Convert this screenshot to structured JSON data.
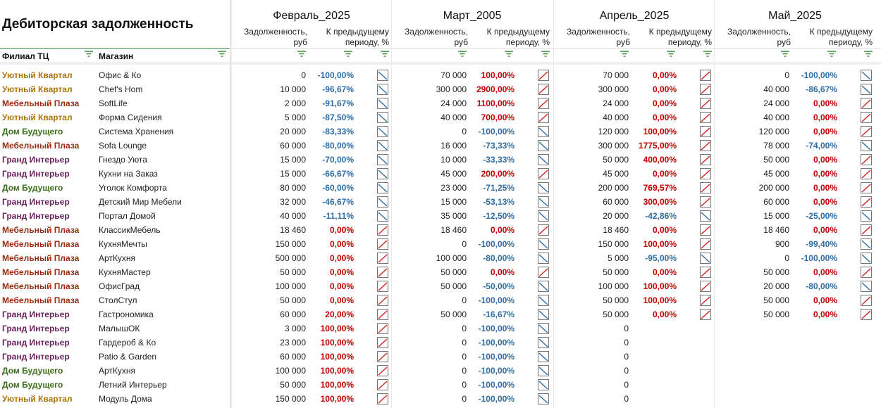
{
  "title": "Дебиторская задолженность",
  "left_headers": {
    "branch": "Филиал ТЦ",
    "shop": "Магазин"
  },
  "colors": {
    "Уютный Квартал": "#a8760f",
    "Мебельный Плаза": "#9a2c0f",
    "Дом Будущего": "#3a6e1a",
    "Гранд Интерьер": "#6a1f5a",
    "pct_down": "#2e6da4",
    "pct_up": "#c00000"
  },
  "months": [
    {
      "name": "Февраль_2025",
      "debt_header": "Задолженность, руб",
      "change_header": "К предыдущему периоду, %"
    },
    {
      "name": "Март_2005",
      "debt_header": "Задолженность, руб",
      "change_header": "К предыдущему периоду, %"
    },
    {
      "name": "Апрель_2025",
      "debt_header": "Задолженность, руб",
      "change_header": "К предыдущему периоду, %"
    },
    {
      "name": "Май_2025",
      "debt_header": "Задолженность, руб",
      "change_header": "К предыдущему периоду, %"
    }
  ],
  "rows": [
    {
      "branch": "Уютный Квартал",
      "shop": "Офис & Ко",
      "cells": [
        {
          "v": "0",
          "p": "-100,00%",
          "d": "down"
        },
        {
          "v": "70 000",
          "p": "100,00%",
          "d": "up"
        },
        {
          "v": "70 000",
          "p": "0,00%",
          "d": "up"
        },
        {
          "v": "0",
          "p": "-100,00%",
          "d": "down"
        }
      ]
    },
    {
      "branch": "Уютный Квартал",
      "shop": "Chef's Hom",
      "cells": [
        {
          "v": "10 000",
          "p": "-96,67%",
          "d": "down"
        },
        {
          "v": "300 000",
          "p": "2900,00%",
          "d": "up"
        },
        {
          "v": "300 000",
          "p": "0,00%",
          "d": "up"
        },
        {
          "v": "40 000",
          "p": "-86,67%",
          "d": "down"
        }
      ]
    },
    {
      "branch": "Мебельный Плаза",
      "shop": "SoftLife",
      "cells": [
        {
          "v": "2 000",
          "p": "-91,67%",
          "d": "down"
        },
        {
          "v": "24 000",
          "p": "1100,00%",
          "d": "up"
        },
        {
          "v": "24 000",
          "p": "0,00%",
          "d": "up"
        },
        {
          "v": "24 000",
          "p": "0,00%",
          "d": "up"
        }
      ]
    },
    {
      "branch": "Уютный Квартал",
      "shop": "Форма Сидения",
      "cells": [
        {
          "v": "5 000",
          "p": "-87,50%",
          "d": "down"
        },
        {
          "v": "40 000",
          "p": "700,00%",
          "d": "up"
        },
        {
          "v": "40 000",
          "p": "0,00%",
          "d": "up"
        },
        {
          "v": "40 000",
          "p": "0,00%",
          "d": "up"
        }
      ]
    },
    {
      "branch": "Дом Будущего",
      "shop": "Система Хранения",
      "cells": [
        {
          "v": "20 000",
          "p": "-83,33%",
          "d": "down"
        },
        {
          "v": "0",
          "p": "-100,00%",
          "d": "down"
        },
        {
          "v": "120 000",
          "p": "100,00%",
          "d": "up"
        },
        {
          "v": "120 000",
          "p": "0,00%",
          "d": "up"
        }
      ]
    },
    {
      "branch": "Мебельный Плаза",
      "shop": "Sofa Lounge",
      "cells": [
        {
          "v": "60 000",
          "p": "-80,00%",
          "d": "down"
        },
        {
          "v": "16 000",
          "p": "-73,33%",
          "d": "down"
        },
        {
          "v": "300 000",
          "p": "1775,00%",
          "d": "up"
        },
        {
          "v": "78 000",
          "p": "-74,00%",
          "d": "down"
        }
      ]
    },
    {
      "branch": "Гранд Интерьер",
      "shop": "Гнездо Уюта",
      "cells": [
        {
          "v": "15 000",
          "p": "-70,00%",
          "d": "down"
        },
        {
          "v": "10 000",
          "p": "-33,33%",
          "d": "down"
        },
        {
          "v": "50 000",
          "p": "400,00%",
          "d": "up"
        },
        {
          "v": "50 000",
          "p": "0,00%",
          "d": "up"
        }
      ]
    },
    {
      "branch": "Гранд Интерьер",
      "shop": "Кухни на Заказ",
      "cells": [
        {
          "v": "15 000",
          "p": "-66,67%",
          "d": "down"
        },
        {
          "v": "45 000",
          "p": "200,00%",
          "d": "up"
        },
        {
          "v": "45 000",
          "p": "0,00%",
          "d": "up"
        },
        {
          "v": "45 000",
          "p": "0,00%",
          "d": "up"
        }
      ]
    },
    {
      "branch": "Дом Будущего",
      "shop": "Уголок Комфорта",
      "cells": [
        {
          "v": "80 000",
          "p": "-60,00%",
          "d": "down"
        },
        {
          "v": "23 000",
          "p": "-71,25%",
          "d": "down"
        },
        {
          "v": "200 000",
          "p": "769,57%",
          "d": "up"
        },
        {
          "v": "200 000",
          "p": "0,00%",
          "d": "up"
        }
      ]
    },
    {
      "branch": "Гранд Интерьер",
      "shop": "Детский Мир Мебели",
      "cells": [
        {
          "v": "32 000",
          "p": "-46,67%",
          "d": "down"
        },
        {
          "v": "15 000",
          "p": "-53,13%",
          "d": "down"
        },
        {
          "v": "60 000",
          "p": "300,00%",
          "d": "up"
        },
        {
          "v": "60 000",
          "p": "0,00%",
          "d": "up"
        }
      ]
    },
    {
      "branch": "Гранд Интерьер",
      "shop": "Портал Домой",
      "cells": [
        {
          "v": "40 000",
          "p": "-11,11%",
          "d": "down"
        },
        {
          "v": "35 000",
          "p": "-12,50%",
          "d": "down"
        },
        {
          "v": "20 000",
          "p": "-42,86%",
          "d": "down"
        },
        {
          "v": "15 000",
          "p": "-25,00%",
          "d": "down"
        }
      ]
    },
    {
      "branch": "Мебельный Плаза",
      "shop": "КлассикМебель",
      "cells": [
        {
          "v": "18 460",
          "p": "0,00%",
          "d": "up"
        },
        {
          "v": "18 460",
          "p": "0,00%",
          "d": "up"
        },
        {
          "v": "18 460",
          "p": "0,00%",
          "d": "up"
        },
        {
          "v": "18 460",
          "p": "0,00%",
          "d": "up"
        }
      ]
    },
    {
      "branch": "Мебельный Плаза",
      "shop": "КухняМечты",
      "cells": [
        {
          "v": "150 000",
          "p": "0,00%",
          "d": "up"
        },
        {
          "v": "0",
          "p": "-100,00%",
          "d": "down"
        },
        {
          "v": "150 000",
          "p": "100,00%",
          "d": "up"
        },
        {
          "v": "900",
          "p": "-99,40%",
          "d": "down"
        }
      ]
    },
    {
      "branch": "Мебельный Плаза",
      "shop": "АртКухня",
      "cells": [
        {
          "v": "500 000",
          "p": "0,00%",
          "d": "up"
        },
        {
          "v": "100 000",
          "p": "-80,00%",
          "d": "down"
        },
        {
          "v": "5 000",
          "p": "-95,00%",
          "d": "down"
        },
        {
          "v": "0",
          "p": "-100,00%",
          "d": "down"
        }
      ]
    },
    {
      "branch": "Мебельный Плаза",
      "shop": "КухняМастер",
      "cells": [
        {
          "v": "50 000",
          "p": "0,00%",
          "d": "up"
        },
        {
          "v": "50 000",
          "p": "0,00%",
          "d": "up"
        },
        {
          "v": "50 000",
          "p": "0,00%",
          "d": "up"
        },
        {
          "v": "50 000",
          "p": "0,00%",
          "d": "up"
        }
      ]
    },
    {
      "branch": "Мебельный Плаза",
      "shop": "ОфисГрад",
      "cells": [
        {
          "v": "100 000",
          "p": "0,00%",
          "d": "up"
        },
        {
          "v": "50 000",
          "p": "-50,00%",
          "d": "down"
        },
        {
          "v": "100 000",
          "p": "100,00%",
          "d": "up"
        },
        {
          "v": "20 000",
          "p": "-80,00%",
          "d": "down"
        }
      ]
    },
    {
      "branch": "Мебельный Плаза",
      "shop": "СтолСтул",
      "cells": [
        {
          "v": "50 000",
          "p": "0,00%",
          "d": "up"
        },
        {
          "v": "0",
          "p": "-100,00%",
          "d": "down"
        },
        {
          "v": "50 000",
          "p": "100,00%",
          "d": "up"
        },
        {
          "v": "50 000",
          "p": "0,00%",
          "d": "up"
        }
      ]
    },
    {
      "branch": "Гранд Интерьер",
      "shop": "Гастрономика",
      "cells": [
        {
          "v": "60 000",
          "p": "20,00%",
          "d": "up"
        },
        {
          "v": "50 000",
          "p": "-16,67%",
          "d": "down"
        },
        {
          "v": "50 000",
          "p": "0,00%",
          "d": "up"
        },
        {
          "v": "50 000",
          "p": "0,00%",
          "d": "up"
        }
      ]
    },
    {
      "branch": "Гранд Интерьер",
      "shop": "МалышОК",
      "cells": [
        {
          "v": "3 000",
          "p": "100,00%",
          "d": "up"
        },
        {
          "v": "0",
          "p": "-100,00%",
          "d": "down"
        },
        {
          "v": "0",
          "p": "",
          "d": ""
        },
        {
          "v": "",
          "p": "",
          "d": ""
        }
      ]
    },
    {
      "branch": "Гранд Интерьер",
      "shop": "Гардероб & Ко",
      "cells": [
        {
          "v": "23 000",
          "p": "100,00%",
          "d": "up"
        },
        {
          "v": "0",
          "p": "-100,00%",
          "d": "down"
        },
        {
          "v": "0",
          "p": "",
          "d": ""
        },
        {
          "v": "",
          "p": "",
          "d": ""
        }
      ]
    },
    {
      "branch": "Гранд Интерьер",
      "shop": "Patio & Garden",
      "cells": [
        {
          "v": "60 000",
          "p": "100,00%",
          "d": "up"
        },
        {
          "v": "0",
          "p": "-100,00%",
          "d": "down"
        },
        {
          "v": "0",
          "p": "",
          "d": ""
        },
        {
          "v": "",
          "p": "",
          "d": ""
        }
      ]
    },
    {
      "branch": "Дом Будущего",
      "shop": "АртКухня",
      "cells": [
        {
          "v": "100 000",
          "p": "100,00%",
          "d": "up"
        },
        {
          "v": "0",
          "p": "-100,00%",
          "d": "down"
        },
        {
          "v": "0",
          "p": "",
          "d": ""
        },
        {
          "v": "",
          "p": "",
          "d": ""
        }
      ]
    },
    {
      "branch": "Дом Будущего",
      "shop": "Летний Интерьер",
      "cells": [
        {
          "v": "50 000",
          "p": "100,00%",
          "d": "up"
        },
        {
          "v": "0",
          "p": "-100,00%",
          "d": "down"
        },
        {
          "v": "0",
          "p": "",
          "d": ""
        },
        {
          "v": "",
          "p": "",
          "d": ""
        }
      ]
    },
    {
      "branch": "Уютный Квартал",
      "shop": "Модуль Дома",
      "cells": [
        {
          "v": "150 000",
          "p": "100,00%",
          "d": "up"
        },
        {
          "v": "0",
          "p": "-100,00%",
          "d": "down"
        },
        {
          "v": "0",
          "p": "",
          "d": ""
        },
        {
          "v": "",
          "p": "",
          "d": ""
        }
      ]
    }
  ]
}
